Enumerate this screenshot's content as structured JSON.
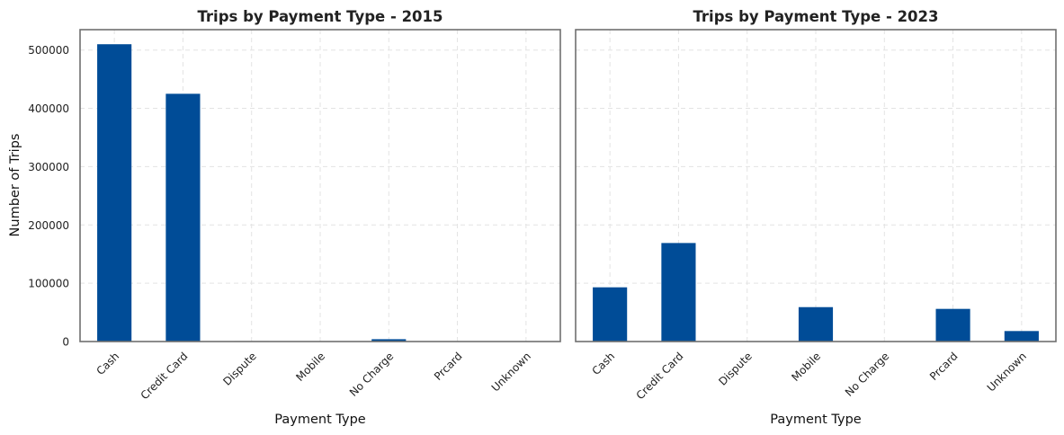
{
  "chart_data": [
    {
      "type": "bar",
      "title": "Trips by Payment Type - 2015",
      "xlabel": "Payment Type",
      "ylabel": "Number of Trips",
      "categories": [
        "Cash",
        "Credit Card",
        "Dispute",
        "Mobile",
        "No Charge",
        "Prcard",
        "Unknown"
      ],
      "values": [
        510000,
        425000,
        800,
        0,
        4000,
        0,
        0
      ],
      "ylim": [
        0,
        535000
      ],
      "yticks": [
        0,
        100000,
        200000,
        300000,
        400000,
        500000
      ],
      "color": "#004c97",
      "grid": true
    },
    {
      "type": "bar",
      "title": "Trips by Payment Type - 2023",
      "xlabel": "Payment Type",
      "ylabel": "",
      "categories": [
        "Cash",
        "Credit Card",
        "Dispute",
        "Mobile",
        "No Charge",
        "Prcard",
        "Unknown"
      ],
      "values": [
        93000,
        169000,
        500,
        59000,
        300,
        56000,
        18000
      ],
      "ylim": [
        0,
        535000
      ],
      "yticks": [
        0,
        100000,
        200000,
        300000,
        400000,
        500000
      ],
      "color": "#004c97",
      "grid": true
    }
  ]
}
